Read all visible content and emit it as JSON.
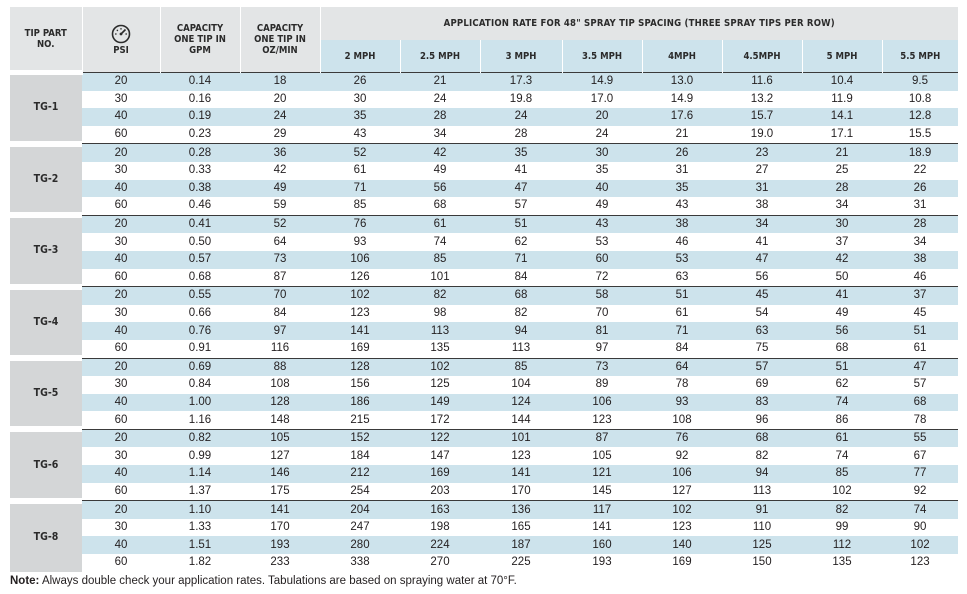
{
  "header": {
    "tip_part_no": "TIP PART NO.",
    "psi": "PSI",
    "gauge_icon": "pressure-gauge-icon",
    "capacity_gpm": "CAPACITY ONE TIP IN GPM",
    "capacity_oz": "CAPACITY ONE TIP IN OZ/MIN",
    "rate_title": "APPLICATION RATE FOR 48\" SPRAY TIP SPACING (THREE SPRAY TIPS PER ROW)",
    "speeds": [
      "2 MPH",
      "2.5 MPH",
      "3 MPH",
      "3.5 MPH",
      "4MPH",
      "4.5MPH",
      "5 MPH",
      "5.5 MPH"
    ]
  },
  "groups": [
    {
      "part": "TG-1",
      "rows": [
        [
          "20",
          "0.14",
          "18",
          "26",
          "21",
          "17.3",
          "14.9",
          "13.0",
          "11.6",
          "10.4",
          "9.5"
        ],
        [
          "30",
          "0.16",
          "20",
          "30",
          "24",
          "19.8",
          "17.0",
          "14.9",
          "13.2",
          "11.9",
          "10.8"
        ],
        [
          "40",
          "0.19",
          "24",
          "35",
          "28",
          "24",
          "20",
          "17.6",
          "15.7",
          "14.1",
          "12.8"
        ],
        [
          "60",
          "0.23",
          "29",
          "43",
          "34",
          "28",
          "24",
          "21",
          "19.0",
          "17.1",
          "15.5"
        ]
      ]
    },
    {
      "part": "TG-2",
      "rows": [
        [
          "20",
          "0.28",
          "36",
          "52",
          "42",
          "35",
          "30",
          "26",
          "23",
          "21",
          "18.9"
        ],
        [
          "30",
          "0.33",
          "42",
          "61",
          "49",
          "41",
          "35",
          "31",
          "27",
          "25",
          "22"
        ],
        [
          "40",
          "0.38",
          "49",
          "71",
          "56",
          "47",
          "40",
          "35",
          "31",
          "28",
          "26"
        ],
        [
          "60",
          "0.46",
          "59",
          "85",
          "68",
          "57",
          "49",
          "43",
          "38",
          "34",
          "31"
        ]
      ]
    },
    {
      "part": "TG-3",
      "rows": [
        [
          "20",
          "0.41",
          "52",
          "76",
          "61",
          "51",
          "43",
          "38",
          "34",
          "30",
          "28"
        ],
        [
          "30",
          "0.50",
          "64",
          "93",
          "74",
          "62",
          "53",
          "46",
          "41",
          "37",
          "34"
        ],
        [
          "40",
          "0.57",
          "73",
          "106",
          "85",
          "71",
          "60",
          "53",
          "47",
          "42",
          "38"
        ],
        [
          "60",
          "0.68",
          "87",
          "126",
          "101",
          "84",
          "72",
          "63",
          "56",
          "50",
          "46"
        ]
      ]
    },
    {
      "part": "TG-4",
      "rows": [
        [
          "20",
          "0.55",
          "70",
          "102",
          "82",
          "68",
          "58",
          "51",
          "45",
          "41",
          "37"
        ],
        [
          "30",
          "0.66",
          "84",
          "123",
          "98",
          "82",
          "70",
          "61",
          "54",
          "49",
          "45"
        ],
        [
          "40",
          "0.76",
          "97",
          "141",
          "113",
          "94",
          "81",
          "71",
          "63",
          "56",
          "51"
        ],
        [
          "60",
          "0.91",
          "116",
          "169",
          "135",
          "113",
          "97",
          "84",
          "75",
          "68",
          "61"
        ]
      ]
    },
    {
      "part": "TG-5",
      "rows": [
        [
          "20",
          "0.69",
          "88",
          "128",
          "102",
          "85",
          "73",
          "64",
          "57",
          "51",
          "47"
        ],
        [
          "30",
          "0.84",
          "108",
          "156",
          "125",
          "104",
          "89",
          "78",
          "69",
          "62",
          "57"
        ],
        [
          "40",
          "1.00",
          "128",
          "186",
          "149",
          "124",
          "106",
          "93",
          "83",
          "74",
          "68"
        ],
        [
          "60",
          "1.16",
          "148",
          "215",
          "172",
          "144",
          "123",
          "108",
          "96",
          "86",
          "78"
        ]
      ]
    },
    {
      "part": "TG-6",
      "rows": [
        [
          "20",
          "0.82",
          "105",
          "152",
          "122",
          "101",
          "87",
          "76",
          "68",
          "61",
          "55"
        ],
        [
          "30",
          "0.99",
          "127",
          "184",
          "147",
          "123",
          "105",
          "92",
          "82",
          "74",
          "67"
        ],
        [
          "40",
          "1.14",
          "146",
          "212",
          "169",
          "141",
          "121",
          "106",
          "94",
          "85",
          "77"
        ],
        [
          "60",
          "1.37",
          "175",
          "254",
          "203",
          "170",
          "145",
          "127",
          "113",
          "102",
          "92"
        ]
      ]
    },
    {
      "part": "TG-8",
      "rows": [
        [
          "20",
          "1.10",
          "141",
          "204",
          "163",
          "136",
          "117",
          "102",
          "91",
          "82",
          "74"
        ],
        [
          "30",
          "1.33",
          "170",
          "247",
          "198",
          "165",
          "141",
          "123",
          "110",
          "99",
          "90"
        ],
        [
          "40",
          "1.51",
          "193",
          "280",
          "224",
          "187",
          "160",
          "140",
          "125",
          "112",
          "102"
        ],
        [
          "60",
          "1.82",
          "233",
          "338",
          "270",
          "225",
          "193",
          "169",
          "150",
          "135",
          "123"
        ]
      ]
    }
  ],
  "note": {
    "label": "Note:",
    "text": " Always double check your application rates. Tabulations are based on spraying water at 70°F."
  }
}
